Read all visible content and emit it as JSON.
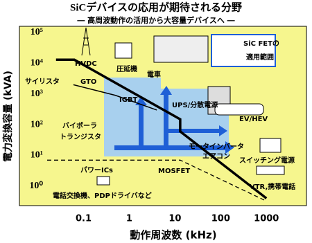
{
  "chart_data": {
    "type": "line",
    "title": "SiCデバイスの応用が期待される分野",
    "subtitle": "― 高周波動作の活用から大容量デバイスへ ―",
    "x_label": "動作周波数 (kHz)",
    "y_label": "電力変換容量 (kVA)",
    "xscale": "log",
    "yscale": "log",
    "xlim": [
      0.016,
      7000
    ],
    "ylim": [
      0.3,
      100000
    ],
    "xticks": [
      0.1,
      1,
      10,
      100,
      1000
    ],
    "yticks": [
      {
        "value": 1,
        "label": "10⁰"
      },
      {
        "value": 10,
        "label": "10¹"
      },
      {
        "value": 100,
        "label": "10²"
      },
      {
        "value": 1000,
        "label": "10³"
      },
      {
        "value": 10000,
        "label": "10⁴"
      },
      {
        "value": 100000,
        "label": "10⁵"
      }
    ],
    "background": "#f6f68e",
    "series": [
      {
        "color": "#000000",
        "line_style": "thick",
        "x": [
          0.025,
          0.063,
          13,
          13,
          1000
        ],
        "values": [
          13000,
          13000,
          150,
          60,
          0.4
        ]
      },
      {
        "color": "#000000",
        "line_style": "thin",
        "x": [
          0.06,
          0.5,
          4
        ],
        "values": [
          2000,
          900,
          300
        ]
      },
      {
        "color": "#000000",
        "line_style": "dashed",
        "x": [
          0.016,
          13,
          900
        ],
        "values": [
          7,
          7,
          0.35
        ]
      }
    ],
    "annotations": [
      "HVDC",
      "圧延機",
      "電車",
      "サイリスタ",
      "GTO",
      "IGBT",
      "UPS/分散電源",
      "EV/HEV",
      "バイポーラ",
      "トランジスタ",
      "モータインバータ",
      "エアコン",
      "スイッチング電源",
      "MOSFET",
      "パワーICs",
      "電話交換機、PDPドライバなど",
      "VTR,携帯電話",
      "SiC FETの",
      "適用範囲"
    ]
  }
}
